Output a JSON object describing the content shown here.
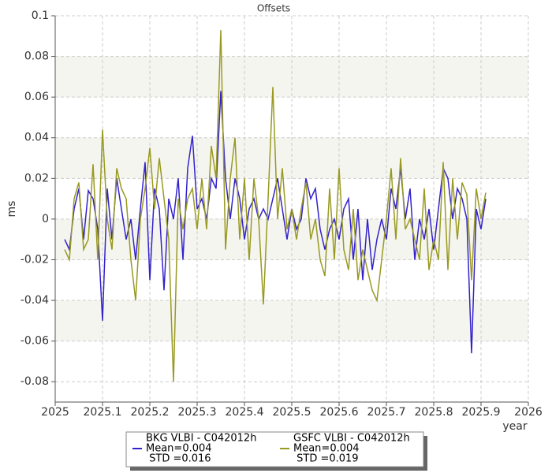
{
  "chart_data": {
    "type": "line",
    "title": "Offsets",
    "ylabel": "ms",
    "xlabel": "year",
    "xlim": [
      2025,
      2026
    ],
    "xticks": [
      2025,
      2025.1,
      2025.2,
      2025.3,
      2025.4,
      2025.5,
      2025.6,
      2025.7,
      2025.8,
      2025.9,
      2026
    ],
    "ylim": [
      -0.09,
      0.1
    ],
    "yticks": [
      0.1,
      0.08,
      0.06,
      0.04,
      0.02,
      0,
      -0.02,
      -0.04,
      -0.06,
      -0.08
    ],
    "grid": true,
    "legend": "bottom",
    "x": [
      2025.02,
      2025.03,
      2025.04,
      2025.05,
      2025.06,
      2025.07,
      2025.08,
      2025.09,
      2025.1,
      2025.11,
      2025.12,
      2025.13,
      2025.14,
      2025.15,
      2025.16,
      2025.17,
      2025.18,
      2025.19,
      2025.2,
      2025.21,
      2025.22,
      2025.23,
      2025.24,
      2025.25,
      2025.26,
      2025.27,
      2025.28,
      2025.29,
      2025.3,
      2025.31,
      2025.32,
      2025.33,
      2025.34,
      2025.35,
      2025.36,
      2025.37,
      2025.38,
      2025.39,
      2025.4,
      2025.41,
      2025.42,
      2025.43,
      2025.44,
      2025.45,
      2025.46,
      2025.47,
      2025.48,
      2025.49,
      2025.5,
      2025.51,
      2025.52,
      2025.53,
      2025.54,
      2025.55,
      2025.56,
      2025.57,
      2025.58,
      2025.59,
      2025.6,
      2025.61,
      2025.62,
      2025.63,
      2025.64,
      2025.65,
      2025.66,
      2025.67,
      2025.68,
      2025.69,
      2025.7,
      2025.71,
      2025.72,
      2025.73,
      2025.74,
      2025.75,
      2025.76,
      2025.77,
      2025.78,
      2025.79,
      2025.8,
      2025.81,
      2025.82,
      2025.83,
      2025.84,
      2025.85,
      2025.86,
      2025.87,
      2025.88,
      2025.89,
      2025.9,
      2025.91
    ],
    "series": [
      {
        "name": "BKG VLBI - C042012h",
        "color": "#3322cc",
        "stats": [
          "Mean=0.004",
          " STD =0.016"
        ],
        "values": [
          -0.01,
          -0.015,
          0.005,
          0.015,
          -0.01,
          0.014,
          0.01,
          -0.005,
          -0.05,
          0.015,
          -0.01,
          0.02,
          0.005,
          -0.01,
          0,
          -0.02,
          0.005,
          0.028,
          -0.03,
          0.015,
          0.005,
          -0.035,
          0.01,
          0,
          0.02,
          -0.02,
          0.025,
          0.041,
          0.005,
          0.01,
          0,
          0.02,
          0.015,
          0.063,
          0.02,
          0,
          0.02,
          0.01,
          -0.01,
          0.005,
          0.01,
          0,
          0.005,
          0,
          0.01,
          0.02,
          0.005,
          -0.01,
          0.005,
          -0.005,
          0,
          0.02,
          0.01,
          0.015,
          -0.005,
          -0.015,
          -0.005,
          0,
          -0.01,
          0.005,
          0.01,
          -0.02,
          0.005,
          -0.03,
          0,
          -0.025,
          -0.01,
          0,
          -0.01,
          0.015,
          0.005,
          0.025,
          0,
          0.015,
          -0.02,
          0,
          -0.01,
          0.005,
          -0.015,
          0.005,
          0.025,
          0.02,
          0,
          0.015,
          0.01,
          0,
          -0.066,
          0.005,
          -0.005,
          0.01
        ]
      },
      {
        "name": "GSFC VLBI - C042012h",
        "color": "#999922",
        "stats": [
          "Mean=0.004",
          " STD =0.019"
        ],
        "values": [
          -0.015,
          -0.02,
          0.01,
          0.018,
          -0.015,
          -0.01,
          0.027,
          -0.02,
          0.044,
          0,
          -0.015,
          0.025,
          0.015,
          0.01,
          -0.02,
          -0.04,
          0,
          0.015,
          0.035,
          0.005,
          0.03,
          0.01,
          -0.01,
          -0.08,
          0.01,
          -0.005,
          0.01,
          0.015,
          -0.005,
          0.02,
          -0.005,
          0.036,
          0.02,
          0.093,
          -0.015,
          0.02,
          0.04,
          -0.01,
          0.02,
          -0.02,
          0.02,
          0,
          -0.042,
          0.01,
          0.065,
          0,
          0.025,
          -0.005,
          0.005,
          -0.01,
          0.005,
          0.018,
          -0.01,
          0,
          -0.02,
          -0.028,
          0.015,
          -0.02,
          0.025,
          -0.015,
          -0.025,
          0.005,
          -0.03,
          -0.015,
          -0.025,
          -0.035,
          -0.04,
          -0.02,
          0,
          0.025,
          -0.01,
          0.03,
          -0.005,
          0,
          -0.01,
          -0.02,
          0.015,
          -0.025,
          -0.01,
          -0.02,
          0.028,
          -0.025,
          0.02,
          -0.01,
          0.018,
          0.012,
          -0.03,
          0.015,
          0,
          0.013
        ]
      }
    ]
  }
}
